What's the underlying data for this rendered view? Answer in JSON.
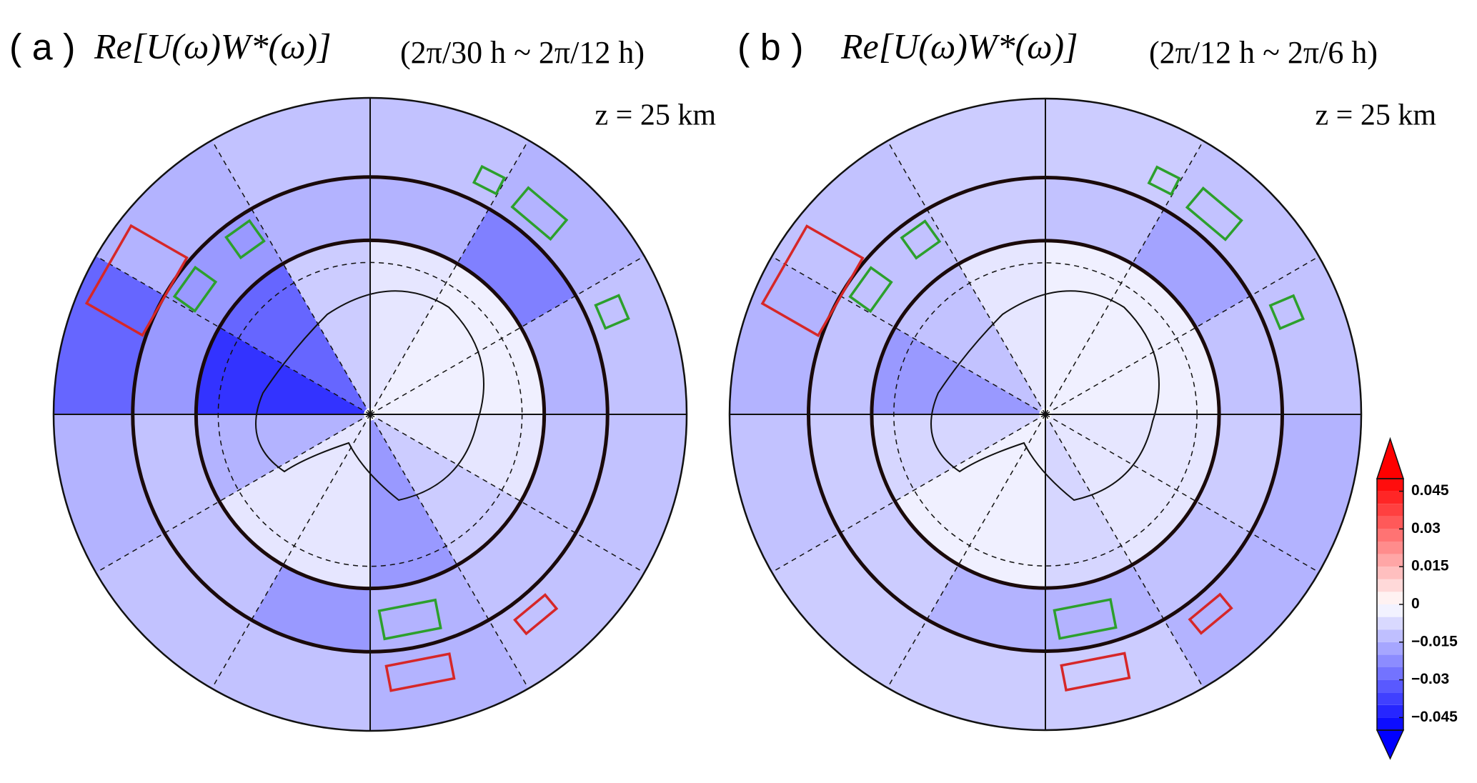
{
  "panels": [
    {
      "label": "( a )",
      "title": "Re[U(ω)W*(ω)]",
      "period": "(2π/30 h ~ 2π/12 h)",
      "level": "z = 25 km",
      "values": [
        [
          -0.005,
          -0.003,
          -0.003,
          -0.005,
          -0.01,
          -0.02,
          -0.005,
          -0.005,
          -0.015,
          -0.04,
          -0.03,
          -0.01
        ],
        [
          -0.015,
          -0.025,
          -0.015,
          -0.012,
          -0.012,
          -0.015,
          -0.02,
          -0.012,
          -0.012,
          -0.02,
          -0.02,
          -0.015
        ],
        [
          -0.012,
          -0.015,
          -0.012,
          -0.012,
          -0.012,
          -0.015,
          -0.012,
          -0.012,
          -0.015,
          -0.03,
          -0.015,
          -0.012
        ]
      ]
    },
    {
      "label": "( b )",
      "title": "Re[U(ω)W*(ω)]",
      "period": "(2π/12 h ~ 2π/6 h)",
      "level": "z = 25 km",
      "values": [
        [
          -0.003,
          -0.003,
          -0.003,
          -0.005,
          -0.005,
          -0.008,
          -0.003,
          -0.003,
          -0.008,
          -0.02,
          -0.012,
          -0.005
        ],
        [
          -0.012,
          -0.018,
          -0.012,
          -0.01,
          -0.012,
          -0.015,
          -0.015,
          -0.01,
          -0.01,
          -0.012,
          -0.012,
          -0.01
        ],
        [
          -0.01,
          -0.012,
          -0.012,
          -0.015,
          -0.015,
          -0.01,
          -0.01,
          -0.01,
          -0.012,
          -0.015,
          -0.012,
          -0.01
        ]
      ]
    }
  ],
  "colorbar": {
    "clim": [
      -0.05,
      0.05
    ],
    "ticks": [
      0.045,
      0.03,
      0.015,
      0,
      {
        "value": -0.015,
        "label": "−0.015"
      },
      {
        "value": -0.03,
        "label": "−0.03"
      },
      {
        "value": -0.045,
        "label": "−0.045"
      }
    ]
  }
}
